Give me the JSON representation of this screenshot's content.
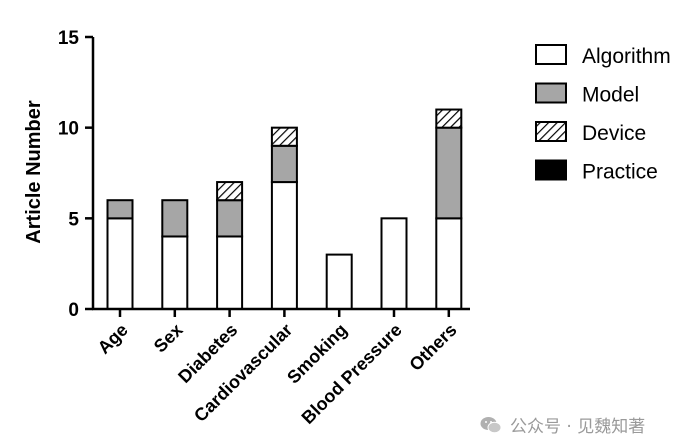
{
  "chart_data": {
    "type": "bar",
    "stacked": true,
    "categories": [
      "Age",
      "Sex",
      "Diabetes",
      "Cardiovascular",
      "Smoking",
      "Blood Pressure",
      "Others"
    ],
    "series": [
      {
        "name": "Algorithm",
        "values": [
          5,
          4,
          4,
          7,
          3,
          5,
          5
        ],
        "fill": "#ffffff",
        "pattern": "solid"
      },
      {
        "name": "Model",
        "values": [
          1,
          2,
          2,
          2,
          0,
          0,
          5
        ],
        "fill": "#a6a6a6",
        "pattern": "solid"
      },
      {
        "name": "Device",
        "values": [
          0,
          0,
          1,
          1,
          0,
          0,
          1
        ],
        "fill": "#ffffff",
        "pattern": "hatch"
      },
      {
        "name": "Practice",
        "values": [
          0,
          0,
          0,
          0,
          0,
          0,
          0
        ],
        "fill": "#000000",
        "pattern": "solid"
      }
    ],
    "ylabel": "Article Number",
    "xlabel": "",
    "ylim": [
      0,
      15
    ],
    "yticks": [
      0,
      5,
      10,
      15
    ],
    "grid": false,
    "legend_position": "right"
  },
  "watermark": {
    "text": "公众号 · 见魏知著",
    "icon": "wechat-icon",
    "color": "#9a9a9a"
  }
}
